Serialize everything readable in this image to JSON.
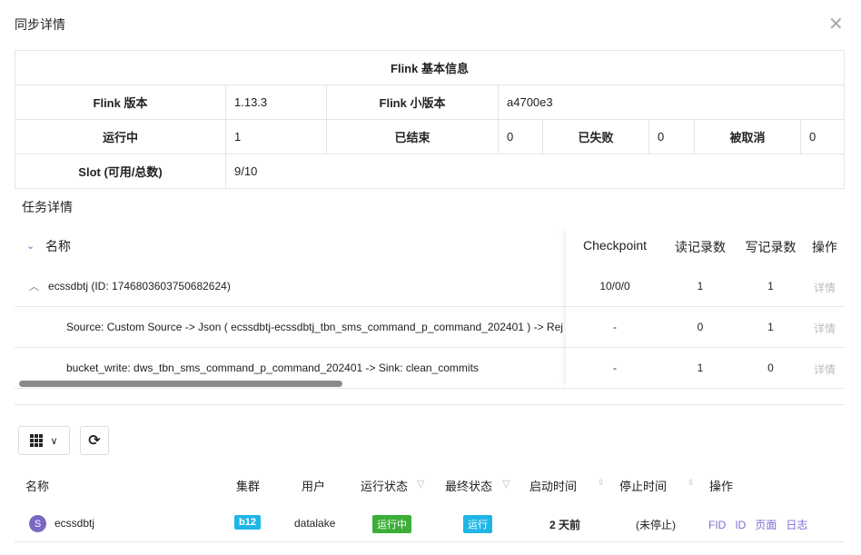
{
  "dialog": {
    "title": "同步详情",
    "close_icon": "close-icon"
  },
  "flink_info": {
    "header": "Flink 基本信息",
    "version_label": "Flink 版本",
    "version": "1.13.3",
    "minor_label": "Flink 小版本",
    "minor": "a4700e3",
    "running_label": "运行中",
    "running": "1",
    "finished_label": "已结束",
    "finished": "0",
    "failed_label": "已失败",
    "failed": "0",
    "canceled_label": "被取消",
    "canceled": "0",
    "slot_label": "Slot (可用/总数)",
    "slot": "9/10"
  },
  "task_details": {
    "title": "任务详情",
    "columns": {
      "name": "名称",
      "checkpoint": "Checkpoint",
      "read": "读记录数",
      "write": "写记录数",
      "action": "操作"
    },
    "rows": [
      {
        "name": "ecssdbtj (ID: 1746803603750682624)",
        "checkpoint": "10/0/0",
        "read": "1",
        "write": "1",
        "action": "详情"
      },
      {
        "name": "Source: Custom Source -> Json ( ecssdbtj-ecssdbtj_tbn_sms_command_p_command_202401 ) -> Rej",
        "checkpoint": "-",
        "read": "0",
        "write": "1",
        "action": "详情"
      },
      {
        "name": "bucket_write: dws_tbn_sms_command_p_command_202401 -> Sink: clean_commits",
        "checkpoint": "-",
        "read": "1",
        "write": "0",
        "action": "详情"
      }
    ]
  },
  "jobs": {
    "columns": {
      "name": "名称",
      "cluster": "集群",
      "user": "用户",
      "run_state": "运行状态",
      "final_state": "最终状态",
      "start": "启动时间",
      "stop": "停止时间",
      "action": "操作"
    },
    "rows": [
      {
        "avatar": "S",
        "name": "ecssdbtj",
        "cluster": "b12",
        "user": "datalake",
        "run_state": "运行中",
        "final_state": "运行",
        "start": "2 天前",
        "stop": "(未停止)",
        "actions": [
          "FID",
          "ID",
          "页面",
          "日志"
        ]
      }
    ],
    "colors": {
      "cluster": "#1fb6e6",
      "run_state": "#3cae38",
      "final_state": "#1fb6e6",
      "avatar": "#7a68c4",
      "link": "#7b6fd6"
    }
  }
}
